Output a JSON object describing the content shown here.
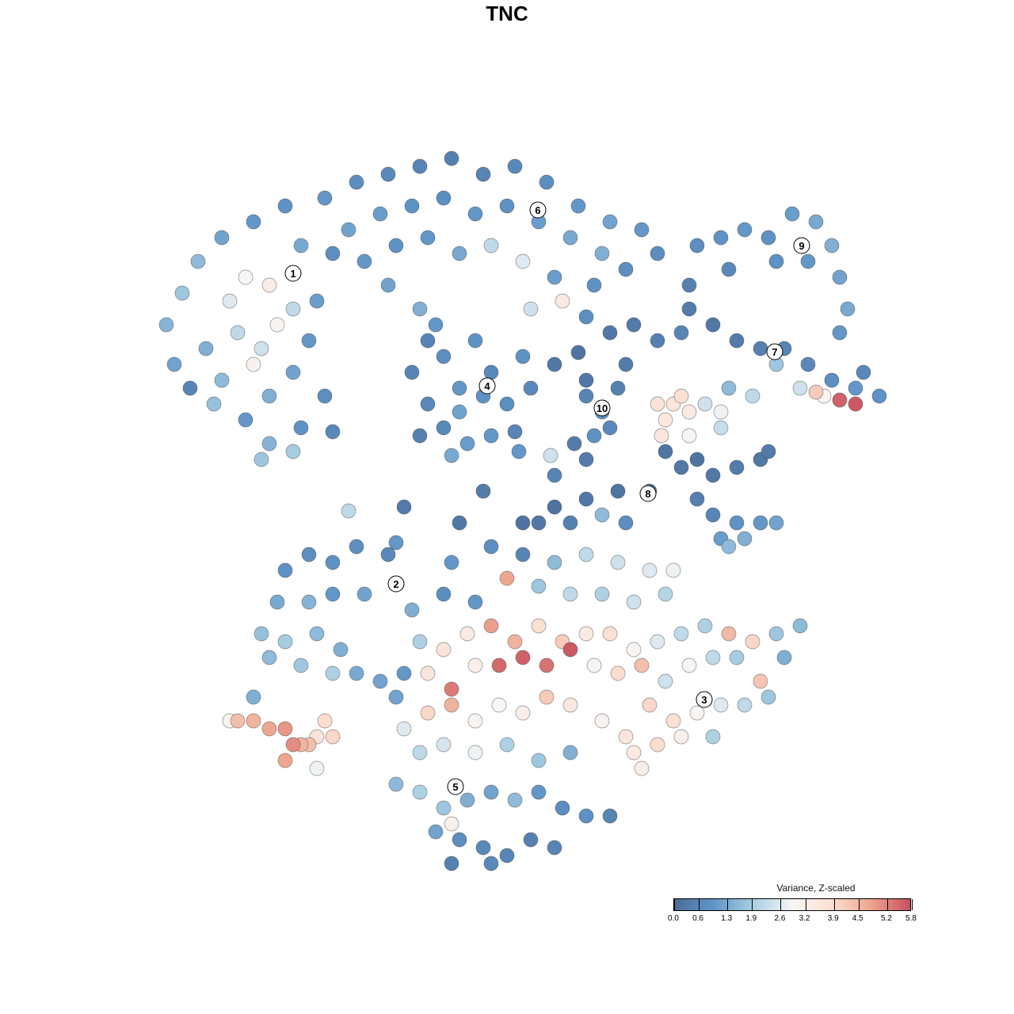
{
  "chart_data": {
    "type": "scatter",
    "title": "TNC",
    "xlabel": "",
    "ylabel": "",
    "xlim": [
      -10,
      10
    ],
    "ylim": [
      -10,
      10
    ],
    "grid": false,
    "colorbar": {
      "title": "Variance, Z-scaled",
      "range": [
        0.0,
        5.8
      ],
      "ticks": [
        "0.0",
        "0.6",
        "1.3",
        "1.9",
        "2.6",
        "3.2",
        "3.9",
        "4.5",
        "5.2",
        "5.8"
      ],
      "tick_values": [
        0.0,
        0.6,
        1.3,
        1.9,
        2.6,
        3.2,
        3.9,
        4.5,
        5.2,
        5.8
      ],
      "colors": [
        "#4b6b98",
        "#5f95c7",
        "#a8cee2",
        "#f6f6f6",
        "#fbdfd2",
        "#eda58f",
        "#c84f5e"
      ],
      "placement": "bottom-right"
    },
    "cluster_labels": [
      {
        "label": "1",
        "x": -5.4,
        "y": 5.9
      },
      {
        "label": "2",
        "x": -2.8,
        "y": -1.94
      },
      {
        "label": "3",
        "x": 4.98,
        "y": -4.86
      },
      {
        "label": "4",
        "x": -0.5,
        "y": 3.06
      },
      {
        "label": "5",
        "x": -1.3,
        "y": -7.06
      },
      {
        "label": "6",
        "x": 0.78,
        "y": 7.5
      },
      {
        "label": "7",
        "x": 6.76,
        "y": 3.92
      },
      {
        "label": "8",
        "x": 3.56,
        "y": 0.34
      },
      {
        "label": "9",
        "x": 7.44,
        "y": 6.6
      },
      {
        "label": "10",
        "x": 2.4,
        "y": 2.5
      }
    ],
    "points_fields": [
      "x",
      "y",
      "value"
    ],
    "points": [
      [
        -8.6,
        4.6,
        1.5
      ],
      [
        -8.2,
        5.4,
        1.8
      ],
      [
        -7.8,
        6.2,
        1.6
      ],
      [
        -7.2,
        6.8,
        1.2
      ],
      [
        -6.4,
        7.2,
        1.0
      ],
      [
        -5.6,
        7.6,
        0.9
      ],
      [
        -7.6,
        4.0,
        1.4
      ],
      [
        -7.0,
        5.2,
        2.6
      ],
      [
        -6.6,
        5.8,
        2.9
      ],
      [
        -6.0,
        5.6,
        3.3
      ],
      [
        -5.8,
        4.6,
        3.0
      ],
      [
        -6.8,
        4.4,
        2.2
      ],
      [
        -7.2,
        3.2,
        1.6
      ],
      [
        -6.4,
        3.6,
        3.1
      ],
      [
        -6.0,
        2.8,
        1.4
      ],
      [
        -5.4,
        3.4,
        1.2
      ],
      [
        -5.0,
        4.2,
        1.0
      ],
      [
        -4.8,
        5.2,
        1.1
      ],
      [
        -4.4,
        6.4,
        0.8
      ],
      [
        -5.2,
        6.6,
        1.3
      ],
      [
        -6.6,
        2.2,
        1.0
      ],
      [
        -6.0,
        1.6,
        1.5
      ],
      [
        -5.2,
        2.0,
        0.9
      ],
      [
        -4.6,
        2.8,
        0.8
      ],
      [
        -8.4,
        3.6,
        1.2
      ],
      [
        -8.0,
        3.0,
        0.6
      ],
      [
        -6.2,
        1.2,
        1.8
      ],
      [
        -5.4,
        1.4,
        1.9
      ],
      [
        -4.4,
        1.9,
        0.7
      ],
      [
        -7.4,
        2.6,
        1.7
      ],
      [
        -5.4,
        5.0,
        2.2
      ],
      [
        -6.2,
        4.0,
        2.4
      ],
      [
        -4.6,
        7.8,
        1.0
      ],
      [
        -3.8,
        8.2,
        0.8
      ],
      [
        -3.0,
        8.4,
        0.7
      ],
      [
        -2.2,
        8.6,
        0.6
      ],
      [
        -1.4,
        8.8,
        0.5
      ],
      [
        -0.6,
        8.4,
        0.6
      ],
      [
        0.2,
        8.6,
        0.7
      ],
      [
        1.0,
        8.2,
        0.8
      ],
      [
        1.8,
        7.6,
        1.0
      ],
      [
        2.6,
        7.2,
        1.2
      ],
      [
        3.4,
        7.0,
        1.0
      ],
      [
        3.8,
        6.4,
        0.8
      ],
      [
        -4.0,
        7.0,
        1.2
      ],
      [
        -3.2,
        7.4,
        1.1
      ],
      [
        -2.4,
        7.6,
        0.9
      ],
      [
        -1.6,
        7.8,
        0.8
      ],
      [
        -0.8,
        7.4,
        1.0
      ],
      [
        0.0,
        7.6,
        0.9
      ],
      [
        0.8,
        7.2,
        1.1
      ],
      [
        1.6,
        6.8,
        1.3
      ],
      [
        2.4,
        6.4,
        1.4
      ],
      [
        -3.6,
        6.2,
        1.0
      ],
      [
        -2.8,
        6.6,
        0.9
      ],
      [
        -2.0,
        6.8,
        1.0
      ],
      [
        -1.2,
        6.4,
        1.3
      ],
      [
        -0.4,
        6.6,
        2.2
      ],
      [
        0.4,
        6.2,
        2.6
      ],
      [
        1.2,
        5.8,
        1.1
      ],
      [
        2.2,
        5.6,
        0.9
      ],
      [
        3.0,
        6.0,
        0.8
      ],
      [
        -3.0,
        5.6,
        1.2
      ],
      [
        -2.2,
        5.0,
        1.4
      ],
      [
        0.6,
        5.0,
        2.4
      ],
      [
        1.4,
        5.2,
        3.4
      ],
      [
        -1.8,
        4.6,
        1.0
      ],
      [
        2.0,
        4.8,
        0.8
      ],
      [
        -2.4,
        3.4,
        0.6
      ],
      [
        -2.0,
        2.6,
        0.7
      ],
      [
        -1.6,
        3.8,
        0.8
      ],
      [
        -1.2,
        3.0,
        1.0
      ],
      [
        -0.8,
        4.2,
        0.9
      ],
      [
        -0.4,
        3.4,
        0.7
      ],
      [
        0.0,
        2.6,
        0.8
      ],
      [
        0.4,
        3.8,
        0.9
      ],
      [
        -1.6,
        2.0,
        0.7
      ],
      [
        -1.0,
        1.6,
        1.1
      ],
      [
        -0.4,
        1.8,
        1.0
      ],
      [
        0.2,
        1.9,
        0.6
      ],
      [
        -2.2,
        1.8,
        0.5
      ],
      [
        -1.2,
        2.4,
        1.2
      ],
      [
        -0.6,
        2.8,
        0.9
      ],
      [
        0.6,
        3.0,
        0.7
      ],
      [
        -2.0,
        4.2,
        0.6
      ],
      [
        -1.4,
        1.3,
        1.3
      ],
      [
        1.2,
        3.6,
        0.3
      ],
      [
        1.8,
        3.9,
        0.2
      ],
      [
        2.6,
        4.4,
        0.3
      ],
      [
        3.2,
        4.6,
        0.4
      ],
      [
        3.8,
        4.2,
        0.5
      ],
      [
        4.4,
        4.4,
        0.6
      ],
      [
        2.0,
        3.2,
        0.3
      ],
      [
        2.0,
        2.8,
        0.6
      ],
      [
        2.4,
        2.4,
        0.8
      ],
      [
        2.6,
        2.0,
        0.7
      ],
      [
        2.8,
        3.0,
        0.5
      ],
      [
        2.2,
        1.8,
        0.9
      ],
      [
        3.0,
        3.6,
        0.4
      ],
      [
        4.8,
        6.6,
        0.8
      ],
      [
        5.4,
        6.8,
        0.9
      ],
      [
        6.0,
        7.0,
        1.0
      ],
      [
        6.6,
        6.8,
        0.9
      ],
      [
        7.2,
        7.4,
        1.1
      ],
      [
        7.8,
        7.2,
        1.3
      ],
      [
        8.2,
        6.6,
        1.4
      ],
      [
        8.4,
        5.8,
        1.2
      ],
      [
        8.6,
        5.0,
        1.3
      ],
      [
        7.6,
        6.2,
        1.0
      ],
      [
        6.8,
        6.2,
        0.9
      ],
      [
        5.6,
        6.0,
        0.7
      ],
      [
        8.4,
        4.4,
        1.0
      ],
      [
        4.6,
        5.6,
        0.5
      ],
      [
        4.6,
        5.0,
        0.4
      ],
      [
        5.2,
        4.6,
        0.3
      ],
      [
        5.8,
        4.2,
        0.4
      ],
      [
        6.4,
        4.0,
        0.5
      ],
      [
        7.0,
        4.0,
        0.6
      ],
      [
        7.6,
        3.6,
        0.7
      ],
      [
        8.2,
        3.2,
        0.8
      ],
      [
        8.8,
        3.0,
        1.0
      ],
      [
        9.4,
        2.8,
        0.9
      ],
      [
        6.8,
        3.6,
        1.8
      ],
      [
        7.4,
        3.0,
        2.4
      ],
      [
        8.0,
        2.8,
        3.0
      ],
      [
        7.8,
        2.9,
        4.2
      ],
      [
        8.4,
        2.7,
        5.6
      ],
      [
        8.8,
        2.6,
        5.7
      ],
      [
        9.0,
        3.4,
        0.7
      ],
      [
        6.2,
        2.8,
        2.2
      ],
      [
        5.6,
        3.0,
        1.6
      ],
      [
        5.0,
        2.6,
        2.4
      ],
      [
        4.2,
        2.6,
        3.6
      ],
      [
        4.4,
        2.8,
        3.8
      ],
      [
        4.6,
        2.4,
        3.4
      ],
      [
        3.8,
        2.6,
        3.7
      ],
      [
        4.0,
        2.2,
        3.5
      ],
      [
        5.4,
        2.4,
        2.8
      ],
      [
        5.4,
        2.0,
        2.3
      ],
      [
        3.9,
        1.8,
        3.6
      ],
      [
        4.6,
        1.8,
        3.0
      ],
      [
        4.0,
        1.4,
        0.2
      ],
      [
        4.4,
        1.0,
        0.3
      ],
      [
        4.8,
        1.2,
        0.2
      ],
      [
        5.2,
        0.8,
        0.3
      ],
      [
        5.8,
        1.0,
        0.4
      ],
      [
        6.4,
        1.2,
        0.3
      ],
      [
        6.6,
        1.4,
        0.4
      ],
      [
        4.8,
        0.2,
        0.5
      ],
      [
        5.2,
        -0.2,
        0.6
      ],
      [
        5.8,
        -0.4,
        0.9
      ],
      [
        6.4,
        -0.4,
        1.0
      ],
      [
        6.8,
        -0.4,
        1.2
      ],
      [
        5.4,
        -0.8,
        1.1
      ],
      [
        6.0,
        -0.8,
        1.4
      ],
      [
        5.6,
        -1.0,
        1.6
      ],
      [
        3.6,
        0.4,
        0.3
      ],
      [
        2.8,
        0.4,
        0.2
      ],
      [
        2.0,
        0.2,
        0.3
      ],
      [
        1.2,
        0.0,
        0.2
      ],
      [
        0.8,
        -0.4,
        0.3
      ],
      [
        1.6,
        -0.4,
        0.5
      ],
      [
        2.4,
        -0.2,
        1.6
      ],
      [
        3.0,
        -0.4,
        0.8
      ],
      [
        -4.0,
        -0.1,
        2.2
      ],
      [
        -2.6,
        0.0,
        0.4
      ],
      [
        -1.2,
        -0.4,
        0.3
      ],
      [
        -0.6,
        0.4,
        0.4
      ],
      [
        0.4,
        -0.4,
        0.2
      ],
      [
        1.2,
        0.8,
        0.6
      ],
      [
        1.7,
        1.6,
        0.4
      ],
      [
        2.0,
        1.2,
        0.4
      ],
      [
        1.1,
        1.3,
        2.4
      ],
      [
        0.3,
        1.4,
        1.0
      ],
      [
        -5.6,
        -1.6,
        0.9
      ],
      [
        -5.0,
        -1.2,
        0.8
      ],
      [
        -4.4,
        -1.4,
        0.9
      ],
      [
        -3.8,
        -1.0,
        0.8
      ],
      [
        -3.0,
        -1.2,
        0.7
      ],
      [
        -2.8,
        -0.9,
        1.0
      ],
      [
        -5.8,
        -2.4,
        1.3
      ],
      [
        -5.0,
        -2.4,
        1.5
      ],
      [
        -4.4,
        -2.2,
        1.0
      ],
      [
        -3.6,
        -2.2,
        1.2
      ],
      [
        -2.4,
        -2.6,
        1.4
      ],
      [
        -6.2,
        -3.2,
        1.7
      ],
      [
        -5.6,
        -3.4,
        1.9
      ],
      [
        -4.8,
        -3.2,
        1.6
      ],
      [
        -4.2,
        -3.6,
        1.4
      ],
      [
        -5.2,
        -4.0,
        1.8
      ],
      [
        -4.4,
        -4.2,
        2.0
      ],
      [
        -3.8,
        -4.2,
        1.3
      ],
      [
        -3.2,
        -4.4,
        1.2
      ],
      [
        -2.6,
        -4.2,
        1.0
      ],
      [
        -6.0,
        -3.8,
        1.6
      ],
      [
        -6.8,
        -5.4,
        4.4
      ],
      [
        -6.4,
        -5.4,
        4.6
      ],
      [
        -6.0,
        -5.6,
        4.8
      ],
      [
        -5.6,
        -5.6,
        5.0
      ],
      [
        -5.4,
        -6.0,
        5.1
      ],
      [
        -5.6,
        -6.4,
        4.8
      ],
      [
        -5.2,
        -6.0,
        4.6
      ],
      [
        -5.0,
        -6.0,
        4.4
      ],
      [
        -4.8,
        -5.8,
        3.7
      ],
      [
        -4.4,
        -5.8,
        4.0
      ],
      [
        -4.6,
        -5.4,
        3.9
      ],
      [
        -4.8,
        -6.6,
        2.8
      ],
      [
        -7.0,
        -5.4,
        3.1
      ],
      [
        -6.4,
        -4.8,
        1.4
      ],
      [
        -1.4,
        -1.4,
        1.0
      ],
      [
        -0.4,
        -1.0,
        0.8
      ],
      [
        0.4,
        -1.2,
        0.6
      ],
      [
        1.2,
        -1.4,
        1.6
      ],
      [
        2.0,
        -1.2,
        2.2
      ],
      [
        2.8,
        -1.4,
        2.4
      ],
      [
        3.6,
        -1.6,
        2.6
      ],
      [
        4.2,
        -1.6,
        2.8
      ],
      [
        -1.6,
        -2.2,
        0.8
      ],
      [
        -0.8,
        -2.4,
        1.0
      ],
      [
        0.0,
        -1.8,
        4.8
      ],
      [
        0.8,
        -2.0,
        1.8
      ],
      [
        1.6,
        -2.2,
        2.2
      ],
      [
        2.4,
        -2.2,
        2.0
      ],
      [
        3.2,
        -2.4,
        2.4
      ],
      [
        4.0,
        -2.2,
        2.1
      ],
      [
        -2.2,
        -3.4,
        2.0
      ],
      [
        -1.6,
        -3.6,
        3.6
      ],
      [
        -1.0,
        -3.2,
        3.4
      ],
      [
        -0.4,
        -3.0,
        4.9
      ],
      [
        0.2,
        -3.4,
        4.6
      ],
      [
        0.8,
        -3.0,
        3.8
      ],
      [
        1.4,
        -3.4,
        4.2
      ],
      [
        2.0,
        -3.2,
        3.4
      ],
      [
        2.6,
        -3.2,
        3.8
      ],
      [
        3.2,
        -3.6,
        3.0
      ],
      [
        3.8,
        -3.4,
        2.6
      ],
      [
        4.4,
        -3.2,
        2.2
      ],
      [
        5.0,
        -3.0,
        2.0
      ],
      [
        5.6,
        -3.2,
        4.5
      ],
      [
        6.2,
        -3.4,
        4.0
      ],
      [
        6.8,
        -3.2,
        1.8
      ],
      [
        7.4,
        -3.0,
        1.6
      ],
      [
        -2.0,
        -4.2,
        3.6
      ],
      [
        -1.4,
        -4.6,
        5.3
      ],
      [
        -0.8,
        -4.0,
        3.2
      ],
      [
        -0.2,
        -4.0,
        5.5
      ],
      [
        0.4,
        -3.8,
        5.6
      ],
      [
        1.0,
        -4.0,
        5.4
      ],
      [
        1.6,
        -3.6,
        5.7
      ],
      [
        2.2,
        -4.0,
        3.0
      ],
      [
        2.8,
        -4.2,
        3.9
      ],
      [
        3.4,
        -4.0,
        4.4
      ],
      [
        4.0,
        -4.4,
        2.4
      ],
      [
        4.6,
        -4.0,
        3.0
      ],
      [
        5.2,
        -3.8,
        2.2
      ],
      [
        5.8,
        -3.8,
        1.9
      ],
      [
        6.4,
        -4.4,
        4.3
      ],
      [
        7.0,
        -3.8,
        1.4
      ],
      [
        -2.8,
        -4.8,
        1.2
      ],
      [
        -2.6,
        -5.6,
        2.6
      ],
      [
        -2.0,
        -5.2,
        4.0
      ],
      [
        -1.4,
        -5.0,
        4.6
      ],
      [
        -0.8,
        -5.4,
        3.0
      ],
      [
        -0.2,
        -5.0,
        2.9
      ],
      [
        0.4,
        -5.2,
        3.2
      ],
      [
        1.0,
        -4.8,
        4.2
      ],
      [
        1.6,
        -5.0,
        3.5
      ],
      [
        2.4,
        -5.4,
        3.1
      ],
      [
        3.0,
        -5.8,
        3.6
      ],
      [
        3.6,
        -5.0,
        4.0
      ],
      [
        4.2,
        -5.4,
        3.8
      ],
      [
        4.8,
        -5.2,
        3.0
      ],
      [
        5.4,
        -5.0,
        2.6
      ],
      [
        6.0,
        -5.0,
        2.2
      ],
      [
        6.6,
        -4.8,
        1.8
      ],
      [
        3.2,
        -6.2,
        3.4
      ],
      [
        3.8,
        -6.0,
        3.9
      ],
      [
        4.4,
        -5.8,
        3.2
      ],
      [
        3.4,
        -6.6,
        3.3
      ],
      [
        -2.2,
        -6.2,
        2.2
      ],
      [
        -1.6,
        -6.0,
        2.5
      ],
      [
        -0.8,
        -6.2,
        2.8
      ],
      [
        0.0,
        -6.0,
        2.0
      ],
      [
        0.8,
        -6.4,
        1.8
      ],
      [
        1.6,
        -6.2,
        1.4
      ],
      [
        5.2,
        -5.8,
        2.0
      ],
      [
        -2.8,
        -7.0,
        1.6
      ],
      [
        -2.2,
        -7.2,
        2.0
      ],
      [
        -1.6,
        -7.6,
        1.8
      ],
      [
        -1.0,
        -7.4,
        1.4
      ],
      [
        -0.4,
        -7.2,
        1.2
      ],
      [
        0.2,
        -7.4,
        1.6
      ],
      [
        0.8,
        -7.2,
        1.0
      ],
      [
        1.4,
        -7.6,
        0.8
      ],
      [
        2.0,
        -7.8,
        0.9
      ],
      [
        2.6,
        -7.8,
        0.6
      ],
      [
        -1.8,
        -8.2,
        1.2
      ],
      [
        -1.2,
        -8.4,
        0.8
      ],
      [
        -0.6,
        -8.6,
        0.7
      ],
      [
        0.0,
        -8.8,
        0.6
      ],
      [
        0.6,
        -8.4,
        0.5
      ],
      [
        1.2,
        -8.6,
        0.6
      ],
      [
        -1.4,
        -9.0,
        0.5
      ],
      [
        -0.4,
        -9.0,
        0.7
      ],
      [
        -1.4,
        -8.0,
        3.2
      ]
    ]
  }
}
